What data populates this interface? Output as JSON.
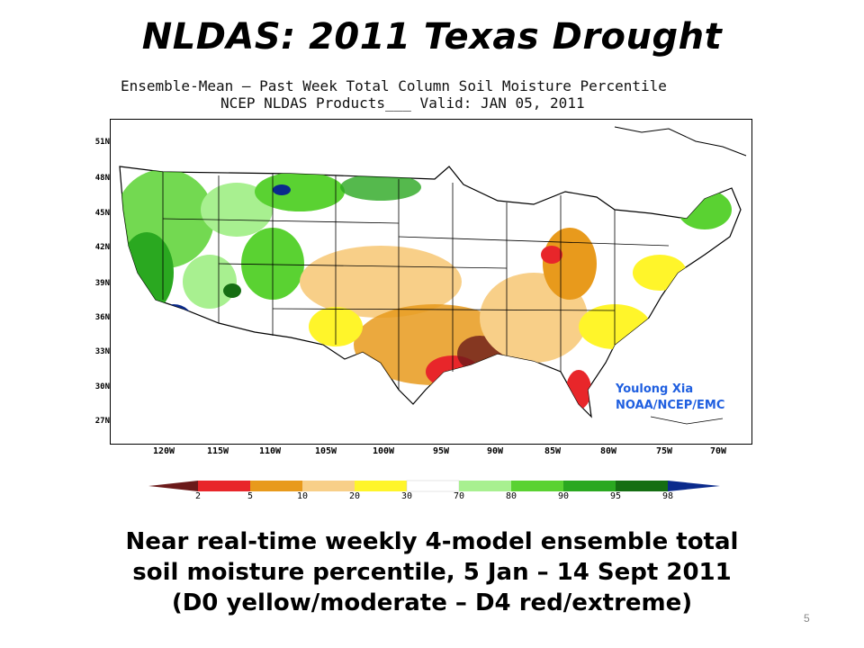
{
  "slide": {
    "title": "NLDAS:  2011 Texas Drought",
    "slide_number": "5"
  },
  "map": {
    "header_line1": "Ensemble-Mean — Past Week Total Column Soil Moisture Percentile",
    "header_line2": "NCEP NLDAS Products___ Valid: JAN 05, 2011",
    "credit_line1": "Youlong Xia",
    "credit_line2": "NOAA/NCEP/EMC",
    "lat_labels": [
      "51N",
      "48N",
      "45N",
      "42N",
      "39N",
      "36N",
      "33N",
      "30N",
      "27N"
    ],
    "lon_labels": [
      "120W",
      "115W",
      "110W",
      "105W",
      "100W",
      "95W",
      "90W",
      "85W",
      "80W",
      "75W",
      "70W"
    ]
  },
  "colorbar": {
    "labels": [
      "2",
      "5",
      "10",
      "20",
      "30",
      "70",
      "80",
      "90",
      "95",
      "98"
    ],
    "colors": [
      "#6b1a1a",
      "#e8262a",
      "#e89a1c",
      "#f8cf88",
      "#fff52a",
      "#ffffff",
      "#a8f090",
      "#5ad232",
      "#2aa820",
      "#156e12",
      "#0a2a8c"
    ]
  },
  "caption": {
    "line1": "Near real-time weekly 4-model ensemble total",
    "line2": "soil moisture percentile, 5 Jan – 14 Sept 2011",
    "line3": "(D0 yellow/moderate – D4 red/extreme)"
  }
}
